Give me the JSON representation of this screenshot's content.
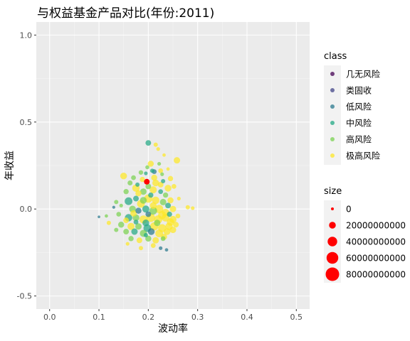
{
  "chart_data": {
    "type": "scatter",
    "title": "与权益基金产品对比(年份:2011)",
    "xlabel": "波动率",
    "ylabel": "年收益",
    "xlim": [
      -0.027,
      0.527
    ],
    "ylim": [
      -0.575,
      1.075
    ],
    "x_ticks": [
      0.0,
      0.1,
      0.2,
      0.3,
      0.4,
      0.5
    ],
    "x_tick_labels": [
      "0.0",
      "0.1",
      "0.2",
      "0.3",
      "0.4",
      "0.5"
    ],
    "y_ticks": [
      -0.5,
      0.0,
      0.5,
      1.0
    ],
    "y_tick_labels": [
      "-0.5",
      "0.0",
      "0.5",
      "1.0"
    ],
    "grid": true,
    "background": "#ebebeb",
    "legend_position": "right",
    "class_legend": {
      "title": "class",
      "entries": [
        {
          "label": "几无风险",
          "color": "#440154"
        },
        {
          "label": "类固收",
          "color": "#414487"
        },
        {
          "label": "低风险",
          "color": "#2a788e"
        },
        {
          "label": "中风险",
          "color": "#22a884"
        },
        {
          "label": "高风险",
          "color": "#7ad151"
        },
        {
          "label": "极高风险",
          "color": "#fde725"
        }
      ]
    },
    "size_legend": {
      "title": "size",
      "entries": [
        {
          "label": "0",
          "value": 0
        },
        {
          "label": "20000000000",
          "value": 20000000000
        },
        {
          "label": "40000000000",
          "value": 40000000000
        },
        {
          "label": "60000000000",
          "value": 60000000000
        },
        {
          "label": "80000000000",
          "value": 80000000000
        }
      ],
      "color": "#ff0000"
    },
    "highlight": {
      "x": 0.197,
      "y": 0.157,
      "color": "#ff0000",
      "size": 2000000000
    },
    "points": [
      {
        "x": 0.2,
        "y": 0.38,
        "c": "中风险",
        "s": 14000000000
      },
      {
        "x": 0.215,
        "y": 0.37,
        "c": "极高风险",
        "s": 8000000000
      },
      {
        "x": 0.22,
        "y": 0.345,
        "c": "极高风险",
        "s": 6000000000
      },
      {
        "x": 0.258,
        "y": 0.28,
        "c": "极高风险",
        "s": 18000000000
      },
      {
        "x": 0.232,
        "y": 0.31,
        "c": "极高风险",
        "s": 5000000000
      },
      {
        "x": 0.205,
        "y": 0.26,
        "c": "极高风险",
        "s": 16000000000
      },
      {
        "x": 0.212,
        "y": 0.215,
        "c": "低风险",
        "s": 10000000000
      },
      {
        "x": 0.208,
        "y": 0.22,
        "c": "中风险",
        "s": 8000000000
      },
      {
        "x": 0.15,
        "y": 0.19,
        "c": "极高风险",
        "s": 20000000000
      },
      {
        "x": 0.185,
        "y": 0.21,
        "c": "高风险",
        "s": 9000000000
      },
      {
        "x": 0.245,
        "y": 0.175,
        "c": "极高风险",
        "s": 12000000000
      },
      {
        "x": 0.228,
        "y": 0.2,
        "c": "高风险",
        "s": 6000000000
      },
      {
        "x": 0.163,
        "y": 0.15,
        "c": "高风险",
        "s": 11000000000
      },
      {
        "x": 0.175,
        "y": 0.12,
        "c": "极高风险",
        "s": 24000000000
      },
      {
        "x": 0.19,
        "y": 0.1,
        "c": "高风险",
        "s": 18000000000
      },
      {
        "x": 0.21,
        "y": 0.11,
        "c": "极高风险",
        "s": 22000000000
      },
      {
        "x": 0.225,
        "y": 0.14,
        "c": "极高风险",
        "s": 14000000000
      },
      {
        "x": 0.24,
        "y": 0.12,
        "c": "极高风险",
        "s": 20000000000
      },
      {
        "x": 0.235,
        "y": 0.08,
        "c": "高风险",
        "s": 12000000000
      },
      {
        "x": 0.155,
        "y": 0.1,
        "c": "高风险",
        "s": 12000000000
      },
      {
        "x": 0.16,
        "y": 0.045,
        "c": "中风险",
        "s": 26000000000
      },
      {
        "x": 0.175,
        "y": 0.06,
        "c": "中风险",
        "s": 14000000000
      },
      {
        "x": 0.19,
        "y": 0.05,
        "c": "高风险",
        "s": 20000000000
      },
      {
        "x": 0.2,
        "y": 0.06,
        "c": "极高风险",
        "s": 30000000000
      },
      {
        "x": 0.215,
        "y": 0.05,
        "c": "极高风险",
        "s": 24000000000
      },
      {
        "x": 0.23,
        "y": 0.04,
        "c": "高风险",
        "s": 18000000000
      },
      {
        "x": 0.245,
        "y": 0.05,
        "c": "极高风险",
        "s": 16000000000
      },
      {
        "x": 0.135,
        "y": 0.04,
        "c": "高风险",
        "s": 8000000000
      },
      {
        "x": 0.145,
        "y": 0.02,
        "c": "高风险",
        "s": 6000000000
      },
      {
        "x": 0.13,
        "y": 0.01,
        "c": "低风险",
        "s": 4000000000
      },
      {
        "x": 0.168,
        "y": 0.0,
        "c": "高风险",
        "s": 20000000000
      },
      {
        "x": 0.18,
        "y": -0.01,
        "c": "低风险",
        "s": 16000000000
      },
      {
        "x": 0.195,
        "y": 0.0,
        "c": "中风险",
        "s": 22000000000
      },
      {
        "x": 0.21,
        "y": -0.01,
        "c": "高风险",
        "s": 26000000000
      },
      {
        "x": 0.222,
        "y": 0.0,
        "c": "极高风险",
        "s": 30000000000
      },
      {
        "x": 0.235,
        "y": -0.02,
        "c": "极高风险",
        "s": 24000000000
      },
      {
        "x": 0.25,
        "y": 0.0,
        "c": "极高风险",
        "s": 18000000000
      },
      {
        "x": 0.28,
        "y": 0.01,
        "c": "极高风险",
        "s": 8000000000
      },
      {
        "x": 0.29,
        "y": 0.005,
        "c": "极高风险",
        "s": 6000000000
      },
      {
        "x": 0.1,
        "y": -0.045,
        "c": "低风险",
        "s": 3000000000
      },
      {
        "x": 0.115,
        "y": -0.04,
        "c": "高风险",
        "s": 5000000000
      },
      {
        "x": 0.14,
        "y": -0.03,
        "c": "高风险",
        "s": 10000000000
      },
      {
        "x": 0.16,
        "y": -0.05,
        "c": "中风险",
        "s": 24000000000
      },
      {
        "x": 0.175,
        "y": -0.05,
        "c": "高风险",
        "s": 20000000000
      },
      {
        "x": 0.19,
        "y": -0.06,
        "c": "极高风险",
        "s": 28000000000
      },
      {
        "x": 0.205,
        "y": -0.05,
        "c": "极高风险",
        "s": 32000000000
      },
      {
        "x": 0.22,
        "y": -0.06,
        "c": "极高风险",
        "s": 30000000000
      },
      {
        "x": 0.235,
        "y": -0.05,
        "c": "极高风险",
        "s": 26000000000
      },
      {
        "x": 0.25,
        "y": -0.06,
        "c": "极高风险",
        "s": 22000000000
      },
      {
        "x": 0.12,
        "y": -0.08,
        "c": "极高风险",
        "s": 8000000000
      },
      {
        "x": 0.145,
        "y": -0.09,
        "c": "高风险",
        "s": 16000000000
      },
      {
        "x": 0.165,
        "y": -0.1,
        "c": "极高风险",
        "s": 22000000000
      },
      {
        "x": 0.18,
        "y": -0.1,
        "c": "高风险",
        "s": 18000000000
      },
      {
        "x": 0.198,
        "y": -0.11,
        "c": "中风险",
        "s": 26000000000
      },
      {
        "x": 0.212,
        "y": -0.1,
        "c": "极高风险",
        "s": 30000000000
      },
      {
        "x": 0.228,
        "y": -0.11,
        "c": "极高风险",
        "s": 28000000000
      },
      {
        "x": 0.242,
        "y": -0.1,
        "c": "极高风险",
        "s": 24000000000
      },
      {
        "x": 0.256,
        "y": -0.09,
        "c": "极高风险",
        "s": 14000000000
      },
      {
        "x": 0.135,
        "y": -0.12,
        "c": "高风险",
        "s": 8000000000
      },
      {
        "x": 0.155,
        "y": -0.13,
        "c": "高风险",
        "s": 14000000000
      },
      {
        "x": 0.172,
        "y": -0.13,
        "c": "中风险",
        "s": 18000000000
      },
      {
        "x": 0.19,
        "y": -0.14,
        "c": "高风险",
        "s": 22000000000
      },
      {
        "x": 0.206,
        "y": -0.13,
        "c": "低风险",
        "s": 20000000000
      },
      {
        "x": 0.222,
        "y": -0.14,
        "c": "极高风险",
        "s": 26000000000
      },
      {
        "x": 0.238,
        "y": -0.13,
        "c": "极高风险",
        "s": 20000000000
      },
      {
        "x": 0.165,
        "y": -0.17,
        "c": "高风险",
        "s": 12000000000
      },
      {
        "x": 0.182,
        "y": -0.18,
        "c": "极高风险",
        "s": 14000000000
      },
      {
        "x": 0.2,
        "y": -0.17,
        "c": "高风险",
        "s": 16000000000
      },
      {
        "x": 0.215,
        "y": -0.18,
        "c": "极高风险",
        "s": 18000000000
      },
      {
        "x": 0.23,
        "y": -0.17,
        "c": "高风险",
        "s": 10000000000
      },
      {
        "x": 0.158,
        "y": -0.2,
        "c": "极高风险",
        "s": 6000000000
      },
      {
        "x": 0.185,
        "y": -0.225,
        "c": "极高风险",
        "s": 8000000000
      },
      {
        "x": 0.21,
        "y": -0.21,
        "c": "极高风险",
        "s": 10000000000
      },
      {
        "x": 0.225,
        "y": -0.225,
        "c": "低风险",
        "s": 6000000000
      },
      {
        "x": 0.237,
        "y": -0.235,
        "c": "低风险",
        "s": 5000000000
      },
      {
        "x": 0.198,
        "y": 0.24,
        "c": "高风险",
        "s": 7000000000
      },
      {
        "x": 0.222,
        "y": 0.26,
        "c": "高风险",
        "s": 6000000000
      },
      {
        "x": 0.188,
        "y": 0.17,
        "c": "极高风险",
        "s": 12000000000
      },
      {
        "x": 0.23,
        "y": 0.16,
        "c": "中风险",
        "s": 8000000000
      },
      {
        "x": 0.17,
        "y": 0.18,
        "c": "高风险",
        "s": 10000000000
      },
      {
        "x": 0.215,
        "y": 0.15,
        "c": "极高风险",
        "s": 20000000000
      },
      {
        "x": 0.2,
        "y": 0.13,
        "c": "高风险",
        "s": 14000000000
      },
      {
        "x": 0.252,
        "y": 0.13,
        "c": "极高风险",
        "s": 10000000000
      },
      {
        "x": 0.225,
        "y": 0.1,
        "c": "中风险",
        "s": 10000000000
      },
      {
        "x": 0.18,
        "y": 0.09,
        "c": "极高风险",
        "s": 16000000000
      },
      {
        "x": 0.205,
        "y": 0.08,
        "c": "中风险",
        "s": 12000000000
      },
      {
        "x": 0.24,
        "y": 0.02,
        "c": "中风险",
        "s": 14000000000
      },
      {
        "x": 0.185,
        "y": 0.03,
        "c": "极高风险",
        "s": 26000000000
      },
      {
        "x": 0.21,
        "y": 0.02,
        "c": "极高风险",
        "s": 20000000000
      },
      {
        "x": 0.17,
        "y": -0.025,
        "c": "极高风险",
        "s": 18000000000
      },
      {
        "x": 0.2,
        "y": -0.03,
        "c": "低风险",
        "s": 14000000000
      },
      {
        "x": 0.228,
        "y": -0.035,
        "c": "极高风险",
        "s": 28000000000
      },
      {
        "x": 0.243,
        "y": -0.03,
        "c": "中风险",
        "s": 12000000000
      },
      {
        "x": 0.155,
        "y": -0.065,
        "c": "极高风险",
        "s": 14000000000
      },
      {
        "x": 0.195,
        "y": -0.08,
        "c": "中风险",
        "s": 20000000000
      },
      {
        "x": 0.218,
        "y": -0.08,
        "c": "高风险",
        "s": 18000000000
      },
      {
        "x": 0.245,
        "y": -0.075,
        "c": "极高风险",
        "s": 24000000000
      },
      {
        "x": 0.175,
        "y": -0.075,
        "c": "中风险",
        "s": 10000000000
      },
      {
        "x": 0.232,
        "y": -0.16,
        "c": "极高风险",
        "s": 16000000000
      },
      {
        "x": 0.195,
        "y": -0.15,
        "c": "中风险",
        "s": 8000000000
      },
      {
        "x": 0.25,
        "y": -0.12,
        "c": "极高风险",
        "s": 18000000000
      },
      {
        "x": 0.26,
        "y": -0.04,
        "c": "极高风险",
        "s": 10000000000
      },
      {
        "x": 0.262,
        "y": 0.06,
        "c": "极高风险",
        "s": 6000000000
      },
      {
        "x": 0.24,
        "y": 0.23,
        "c": "极高风险",
        "s": 5000000000
      },
      {
        "x": 0.225,
        "y": 0.22,
        "c": "极高风险",
        "s": 10000000000
      },
      {
        "x": 0.195,
        "y": 0.205,
        "c": "中风险",
        "s": 6000000000
      },
      {
        "x": 0.178,
        "y": 0.14,
        "c": "中风险",
        "s": 8000000000
      },
      {
        "x": 0.212,
        "y": 0.18,
        "c": "极高风险",
        "s": 16000000000
      }
    ]
  }
}
